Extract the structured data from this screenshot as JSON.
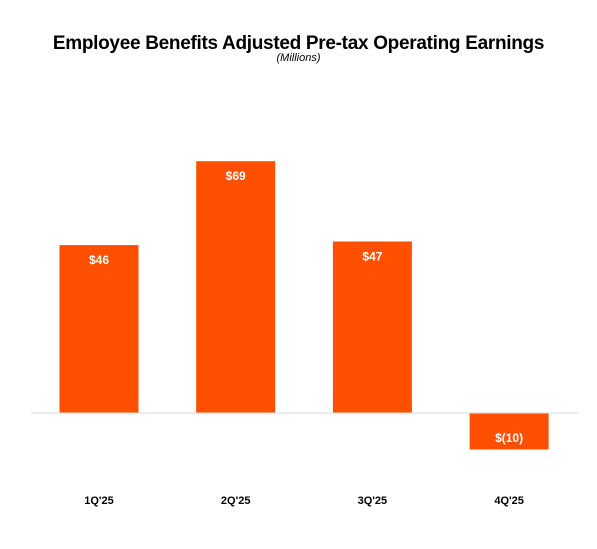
{
  "chart_data": {
    "type": "bar",
    "title": "Employee Benefits Adjusted Pre-tax Operating Earnings",
    "subtitle": "(Millions)",
    "categories": [
      "1Q'25",
      "2Q'25",
      "3Q'25",
      "4Q'25"
    ],
    "values": [
      46,
      69,
      47,
      -10
    ],
    "data_labels": [
      "$46",
      "$69",
      "$47",
      "$(10)"
    ],
    "ylim": [
      -20,
      80
    ],
    "grid": false,
    "legend": "none",
    "colors": {
      "bar": "#FF4F00",
      "baseline": "#D9D9D9"
    }
  }
}
